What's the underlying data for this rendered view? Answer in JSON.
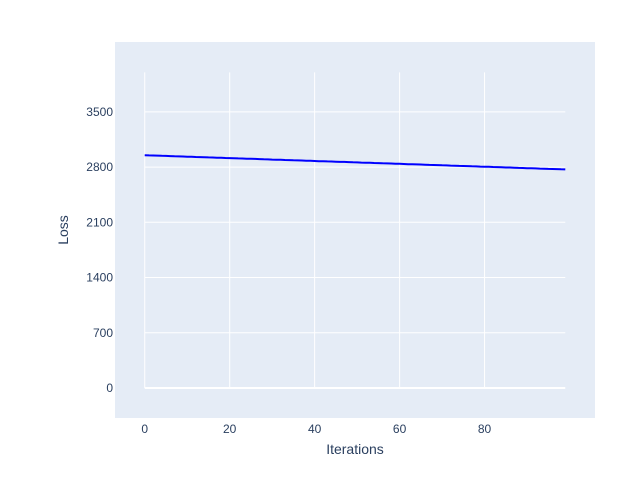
{
  "chart_data": {
    "type": "line",
    "title": "",
    "xlabel": "Iterations",
    "ylabel": "Loss",
    "xlim": [
      -7,
      106
    ],
    "ylim": [
      -380,
      4385
    ],
    "x_ticks": [
      0,
      20,
      40,
      60,
      80
    ],
    "y_ticks": [
      0,
      700,
      1400,
      2100,
      2800,
      3500
    ],
    "grid": true,
    "x_start": 0,
    "series": [
      {
        "color": "#0000ff",
        "values": [
          2950,
          2948,
          2946,
          2945,
          2943,
          2941,
          2939,
          2937,
          2935,
          2934,
          2932,
          2930,
          2928,
          2926,
          2925,
          2923,
          2921,
          2919,
          2917,
          2915,
          2914,
          2912,
          2910,
          2908,
          2906,
          2905,
          2903,
          2901,
          2899,
          2897,
          2895,
          2894,
          2892,
          2890,
          2888,
          2886,
          2885,
          2883,
          2881,
          2879,
          2877,
          2875,
          2874,
          2872,
          2870,
          2868,
          2866,
          2865,
          2863,
          2861,
          2859,
          2857,
          2855,
          2854,
          2852,
          2850,
          2848,
          2846,
          2845,
          2843,
          2841,
          2839,
          2837,
          2835,
          2834,
          2832,
          2830,
          2828,
          2826,
          2825,
          2823,
          2821,
          2819,
          2817,
          2815,
          2814,
          2812,
          2810,
          2808,
          2806,
          2805,
          2803,
          2801,
          2799,
          2797,
          2795,
          2794,
          2792,
          2790,
          2788,
          2786,
          2785,
          2783,
          2781,
          2779,
          2777,
          2775,
          2774,
          2772,
          2770
        ]
      }
    ],
    "plot_bgcolor": "#e5ecf6"
  }
}
